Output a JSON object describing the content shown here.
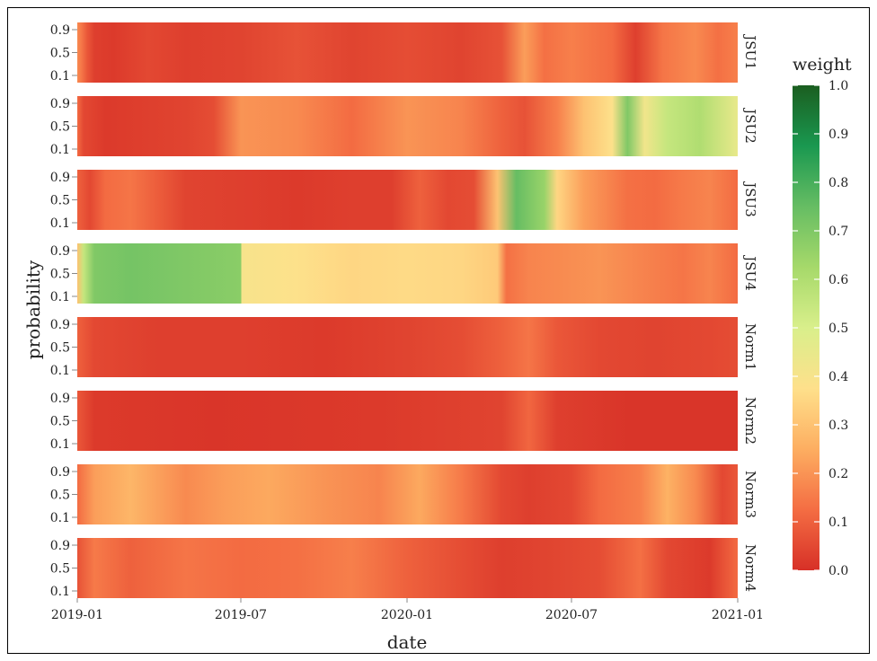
{
  "chart_data": {
    "type": "heatmap",
    "xlabel": "date",
    "ylabel": "probability",
    "x_ticks": [
      "2019-01",
      "2019-07",
      "2020-01",
      "2020-07",
      "2021-01"
    ],
    "x_range": [
      "2019-01-01",
      "2021-01-01"
    ],
    "y_ticks": [
      "0.9",
      "0.5",
      "0.1"
    ],
    "panels": [
      "JSU1",
      "JSU2",
      "JSU3",
      "JSU4",
      "Norm1",
      "Norm2",
      "Norm3",
      "Norm4"
    ],
    "legend": {
      "title": "weight",
      "range": [
        0,
        1
      ],
      "ticks": [
        "0.0",
        "0.1",
        "0.2",
        "0.3",
        "0.4",
        "0.5",
        "0.6",
        "0.7",
        "0.8",
        "0.9",
        "1.0"
      ],
      "placement": "right",
      "colors": [
        "#d73027",
        "#f46d43",
        "#fdae61",
        "#fee08b",
        "#d9ef8b",
        "#a6d96a",
        "#66bd63",
        "#1a9850",
        "#1b5e20"
      ]
    },
    "segments": [
      [
        [
          "2019-01-01",
          0.18
        ],
        [
          "2019-01-06",
          0.14
        ],
        [
          "2019-01-12",
          0.08
        ],
        [
          "2019-01-20",
          0.03
        ],
        [
          "2019-02-10",
          0.02
        ],
        [
          "2019-03-20",
          0.05
        ],
        [
          "2019-05-01",
          0.03
        ],
        [
          "2019-07-01",
          0.04
        ],
        [
          "2019-09-01",
          0.07
        ],
        [
          "2019-11-01",
          0.04
        ],
        [
          "2020-01-01",
          0.06
        ],
        [
          "2020-03-01",
          0.04
        ],
        [
          "2020-04-15",
          0.07
        ],
        [
          "2020-05-10",
          0.22
        ],
        [
          "2020-06-01",
          0.13
        ],
        [
          "2020-07-01",
          0.16
        ],
        [
          "2020-08-15",
          0.12
        ],
        [
          "2020-09-10",
          0.03
        ],
        [
          "2020-10-10",
          0.14
        ],
        [
          "2020-11-15",
          0.18
        ],
        [
          "2020-12-10",
          0.13
        ],
        [
          "2021-01-01",
          0.16
        ]
      ],
      [
        [
          "2019-01-01",
          0.12
        ],
        [
          "2019-01-08",
          0.05
        ],
        [
          "2019-02-01",
          0.02
        ],
        [
          "2019-05-01",
          0.04
        ],
        [
          "2019-06-01",
          0.06
        ],
        [
          "2019-07-01",
          0.2
        ],
        [
          "2019-09-01",
          0.18
        ],
        [
          "2019-11-01",
          0.12
        ],
        [
          "2020-01-01",
          0.2
        ],
        [
          "2020-03-01",
          0.17
        ],
        [
          "2020-04-15",
          0.1
        ],
        [
          "2020-05-10",
          0.07
        ],
        [
          "2020-06-15",
          0.16
        ],
        [
          "2020-07-15",
          0.3
        ],
        [
          "2020-08-15",
          0.38
        ],
        [
          "2020-09-01",
          0.7
        ],
        [
          "2020-09-20",
          0.42
        ],
        [
          "2020-10-15",
          0.55
        ],
        [
          "2020-11-20",
          0.6
        ],
        [
          "2021-01-01",
          0.45
        ]
      ],
      [
        [
          "2019-01-01",
          0.1
        ],
        [
          "2019-01-15",
          0.05
        ],
        [
          "2019-02-01",
          0.12
        ],
        [
          "2019-03-01",
          0.14
        ],
        [
          "2019-04-01",
          0.09
        ],
        [
          "2019-05-01",
          0.04
        ],
        [
          "2019-07-01",
          0.03
        ],
        [
          "2019-09-01",
          0.02
        ],
        [
          "2019-11-01",
          0.03
        ],
        [
          "2019-12-15",
          0.03
        ],
        [
          "2020-01-15",
          0.1
        ],
        [
          "2020-02-15",
          0.05
        ],
        [
          "2020-03-15",
          0.06
        ],
        [
          "2020-04-10",
          0.3
        ],
        [
          "2020-05-01",
          0.75
        ],
        [
          "2020-06-01",
          0.65
        ],
        [
          "2020-06-15",
          0.35
        ],
        [
          "2020-07-15",
          0.22
        ],
        [
          "2020-09-01",
          0.13
        ],
        [
          "2020-10-01",
          0.12
        ],
        [
          "2020-11-01",
          0.15
        ],
        [
          "2020-12-01",
          0.17
        ],
        [
          "2021-01-01",
          0.12
        ]
      ],
      [
        [
          "2019-01-01",
          0.3
        ],
        [
          "2019-01-08",
          0.55
        ],
        [
          "2019-01-20",
          0.7
        ],
        [
          "2019-03-01",
          0.72
        ],
        [
          "2019-05-01",
          0.7
        ],
        [
          "2019-07-01",
          0.68
        ],
        [
          "2019-07-02",
          0.4
        ],
        [
          "2019-09-01",
          0.38
        ],
        [
          "2019-11-01",
          0.35
        ],
        [
          "2020-01-01",
          0.36
        ],
        [
          "2020-03-01",
          0.35
        ],
        [
          "2020-04-10",
          0.32
        ],
        [
          "2020-04-20",
          0.13
        ],
        [
          "2020-05-15",
          0.17
        ],
        [
          "2020-06-15",
          0.18
        ],
        [
          "2020-08-01",
          0.2
        ],
        [
          "2020-09-15",
          0.17
        ],
        [
          "2020-11-01",
          0.14
        ],
        [
          "2020-12-01",
          0.17
        ],
        [
          "2021-01-01",
          0.12
        ]
      ],
      [
        [
          "2019-01-01",
          0.1
        ],
        [
          "2019-01-20",
          0.05
        ],
        [
          "2019-04-01",
          0.03
        ],
        [
          "2019-07-01",
          0.03
        ],
        [
          "2019-10-01",
          0.02
        ],
        [
          "2020-01-01",
          0.04
        ],
        [
          "2020-03-01",
          0.06
        ],
        [
          "2020-04-15",
          0.1
        ],
        [
          "2020-05-15",
          0.14
        ],
        [
          "2020-06-15",
          0.08
        ],
        [
          "2020-08-01",
          0.05
        ],
        [
          "2020-10-01",
          0.04
        ],
        [
          "2020-12-01",
          0.05
        ],
        [
          "2021-01-01",
          0.06
        ]
      ],
      [
        [
          "2019-01-01",
          0.08
        ],
        [
          "2019-01-20",
          0.02
        ],
        [
          "2019-06-01",
          0.01
        ],
        [
          "2019-12-01",
          0.02
        ],
        [
          "2020-04-15",
          0.04
        ],
        [
          "2020-05-15",
          0.11
        ],
        [
          "2020-06-15",
          0.03
        ],
        [
          "2020-09-01",
          0.01
        ],
        [
          "2021-01-01",
          0.01
        ]
      ],
      [
        [
          "2019-01-01",
          0.12
        ],
        [
          "2019-01-20",
          0.22
        ],
        [
          "2019-03-01",
          0.27
        ],
        [
          "2019-05-01",
          0.18
        ],
        [
          "2019-06-15",
          0.22
        ],
        [
          "2019-08-01",
          0.24
        ],
        [
          "2019-10-01",
          0.2
        ],
        [
          "2019-12-01",
          0.17
        ],
        [
          "2020-01-15",
          0.24
        ],
        [
          "2020-03-01",
          0.15
        ],
        [
          "2020-04-15",
          0.05
        ],
        [
          "2020-05-15",
          0.03
        ],
        [
          "2020-07-01",
          0.05
        ],
        [
          "2020-08-01",
          0.12
        ],
        [
          "2020-09-15",
          0.16
        ],
        [
          "2020-10-15",
          0.26
        ],
        [
          "2020-11-15",
          0.18
        ],
        [
          "2020-12-15",
          0.05
        ],
        [
          "2021-01-01",
          0.08
        ]
      ],
      [
        [
          "2019-01-01",
          0.07
        ],
        [
          "2019-01-20",
          0.15
        ],
        [
          "2019-03-01",
          0.1
        ],
        [
          "2019-05-01",
          0.14
        ],
        [
          "2019-07-01",
          0.12
        ],
        [
          "2019-09-01",
          0.13
        ],
        [
          "2019-11-01",
          0.16
        ],
        [
          "2020-01-01",
          0.1
        ],
        [
          "2020-03-01",
          0.06
        ],
        [
          "2020-04-15",
          0.03
        ],
        [
          "2020-06-01",
          0.04
        ],
        [
          "2020-08-01",
          0.06
        ],
        [
          "2020-09-15",
          0.13
        ],
        [
          "2020-10-15",
          0.05
        ],
        [
          "2020-12-01",
          0.02
        ],
        [
          "2021-01-01",
          0.12
        ]
      ]
    ]
  }
}
